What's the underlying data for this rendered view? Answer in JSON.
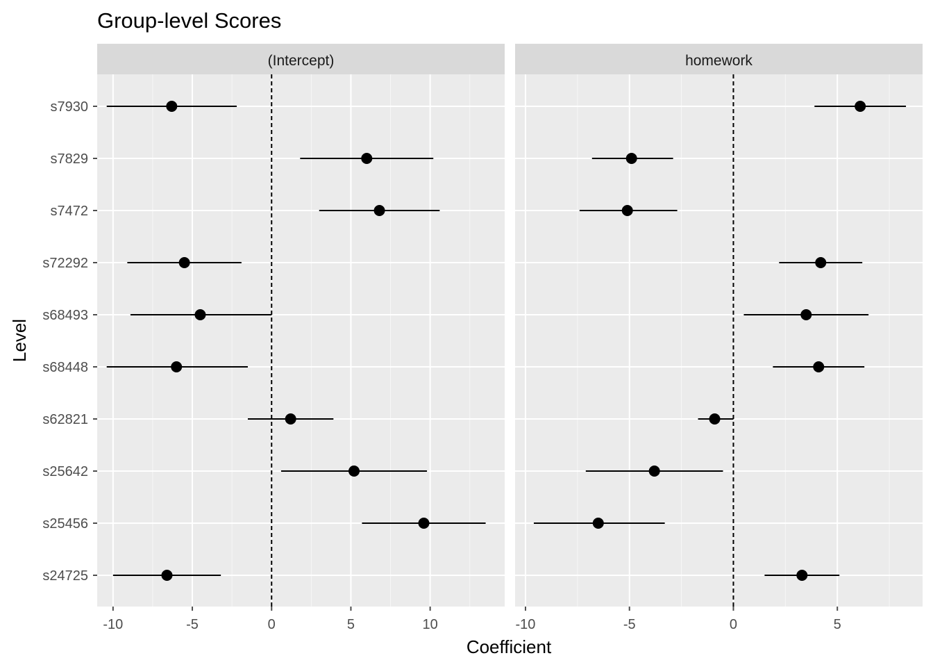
{
  "chart_data": {
    "type": "scatter",
    "title": "Group-level Scores",
    "xlabel": "Coefficient",
    "ylabel": "Level",
    "levels": [
      "s7930",
      "s7829",
      "s7472",
      "s72292",
      "s68493",
      "s68448",
      "s62821",
      "s25642",
      "s25456",
      "s24725"
    ],
    "grid": true,
    "reference_line": 0,
    "panels": [
      {
        "name": "(Intercept)",
        "xlim": [
          -11.0,
          14.7
        ],
        "xticks": [
          -10,
          -5,
          0,
          5,
          10
        ],
        "xtick_labels": [
          "-10",
          "-5",
          "0",
          "5",
          "10"
        ],
        "points": [
          {
            "level": "s7930",
            "estimate": -6.3,
            "lower": -10.4,
            "upper": -2.2
          },
          {
            "level": "s7829",
            "estimate": 6.0,
            "lower": 1.8,
            "upper": 10.2
          },
          {
            "level": "s7472",
            "estimate": 6.8,
            "lower": 3.0,
            "upper": 10.6
          },
          {
            "level": "s72292",
            "estimate": -5.5,
            "lower": -9.1,
            "upper": -1.9
          },
          {
            "level": "s68493",
            "estimate": -4.5,
            "lower": -8.9,
            "upper": 0.0
          },
          {
            "level": "s68448",
            "estimate": -6.0,
            "lower": -10.4,
            "upper": -1.5
          },
          {
            "level": "s62821",
            "estimate": 1.2,
            "lower": -1.5,
            "upper": 3.9
          },
          {
            "level": "s25642",
            "estimate": 5.2,
            "lower": 0.6,
            "upper": 9.8
          },
          {
            "level": "s25456",
            "estimate": 9.6,
            "lower": 5.7,
            "upper": 13.5
          },
          {
            "level": "s24725",
            "estimate": -6.6,
            "lower": -10.0,
            "upper": -3.2
          }
        ]
      },
      {
        "name": "homework",
        "xlim": [
          -10.5,
          9.1
        ],
        "xticks": [
          -10,
          -5,
          0,
          5
        ],
        "xtick_labels": [
          "-10",
          "-5",
          "0",
          "5"
        ],
        "points": [
          {
            "level": "s7930",
            "estimate": 6.1,
            "lower": 3.9,
            "upper": 8.3
          },
          {
            "level": "s7829",
            "estimate": -4.9,
            "lower": -6.8,
            "upper": -2.9
          },
          {
            "level": "s7472",
            "estimate": -5.1,
            "lower": -7.4,
            "upper": -2.7
          },
          {
            "level": "s72292",
            "estimate": 4.2,
            "lower": 2.2,
            "upper": 6.2
          },
          {
            "level": "s68493",
            "estimate": 3.5,
            "lower": 0.5,
            "upper": 6.5
          },
          {
            "level": "s68448",
            "estimate": 4.1,
            "lower": 1.9,
            "upper": 6.3
          },
          {
            "level": "s62821",
            "estimate": -0.9,
            "lower": -1.7,
            "upper": 0.0
          },
          {
            "level": "s25642",
            "estimate": -3.8,
            "lower": -7.1,
            "upper": -0.5
          },
          {
            "level": "s25456",
            "estimate": -6.5,
            "lower": -9.6,
            "upper": -3.3
          },
          {
            "level": "s24725",
            "estimate": 3.3,
            "lower": 1.5,
            "upper": 5.1
          }
        ]
      }
    ]
  },
  "colors": {
    "panel_background": "#ebebeb",
    "grid_major": "#ffffff",
    "strip_background": "#d9d9d9",
    "point": "#000000",
    "errorbar": "#000000",
    "reference_line": "#000000",
    "tick_text": "#4d4d4d"
  }
}
